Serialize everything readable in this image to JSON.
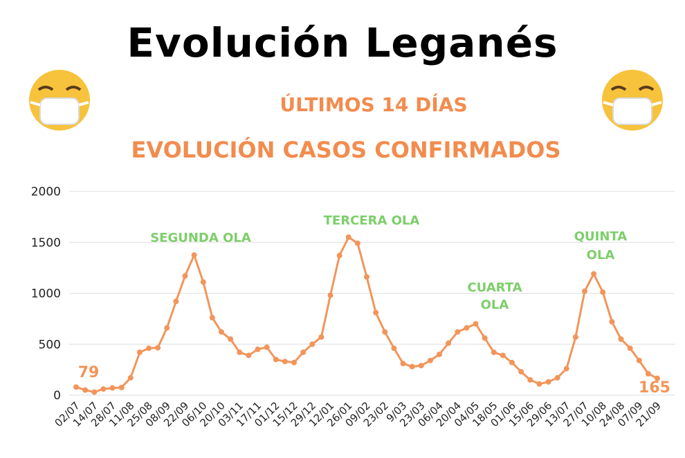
{
  "header": {
    "title": "Evolución Leganés",
    "subtitle1": "ÚLTIMOS 14 DÍAS",
    "subtitle2": "EVOLUCIÓN CASOS CONFIRMADOS"
  },
  "icons": [
    "face-with-mask-icon",
    "face-with-mask-icon"
  ],
  "colors": {
    "line": "#f2955a",
    "accent_text": "#f28c4e",
    "wave_label": "#7dce6a",
    "grid": "#dddddd"
  },
  "chart_data": {
    "type": "line",
    "title": "EVOLUCIÓN CASOS CONFIRMADOS",
    "xlabel": "",
    "ylabel": "",
    "ylim": [
      0,
      2000
    ],
    "yticks": [
      0,
      500,
      1000,
      1500,
      2000
    ],
    "grid": true,
    "categories": [
      "02/07",
      "14/07",
      "28/07",
      "11/08",
      "25/08",
      "08/09",
      "22/09",
      "06/10",
      "20/10",
      "03/11",
      "17/11",
      "01/12",
      "15/12",
      "29/12",
      "12/01",
      "26/01",
      "09/02",
      "23/02",
      "9/03",
      "23/03",
      "06/04",
      "20/04",
      "04/05",
      "18/05",
      "01/06",
      "15/06",
      "29/06",
      "13/07",
      "27/07",
      "10/08",
      "24/08",
      "07/09",
      "21/09"
    ],
    "x": [
      0,
      1,
      2,
      3,
      4,
      5,
      6,
      7,
      8,
      9,
      10,
      11,
      12,
      13,
      14,
      15,
      16,
      17,
      18,
      19,
      20,
      21,
      22,
      23,
      24,
      25,
      26,
      27,
      28,
      29,
      30,
      31,
      32,
      33,
      34,
      35,
      36,
      37,
      38,
      39,
      40,
      41,
      42,
      43,
      44,
      45,
      46,
      47,
      48,
      49,
      50,
      51,
      52,
      53,
      54,
      55,
      56,
      57,
      58,
      59,
      60,
      61,
      62,
      63,
      64
    ],
    "values": [
      79,
      50,
      30,
      60,
      70,
      75,
      170,
      420,
      460,
      465,
      660,
      920,
      1170,
      1375,
      1110,
      760,
      620,
      550,
      420,
      390,
      450,
      470,
      350,
      330,
      320,
      420,
      500,
      570,
      980,
      1370,
      1550,
      1490,
      1160,
      810,
      620,
      460,
      310,
      280,
      290,
      340,
      400,
      510,
      620,
      660,
      700,
      560,
      420,
      390,
      320,
      230,
      150,
      110,
      130,
      170,
      260,
      570,
      1020,
      1190,
      1010,
      720,
      550,
      460,
      340,
      210,
      165
    ],
    "annotations": [
      {
        "text": "79"
      },
      {
        "text": "SEGUNDA OLA"
      },
      {
        "text": "TERCERA OLA"
      },
      {
        "text": "CUARTA"
      },
      {
        "text": "OLA"
      },
      {
        "text": "QUINTA"
      },
      {
        "text": "OLA"
      },
      {
        "text": "165"
      }
    ]
  }
}
